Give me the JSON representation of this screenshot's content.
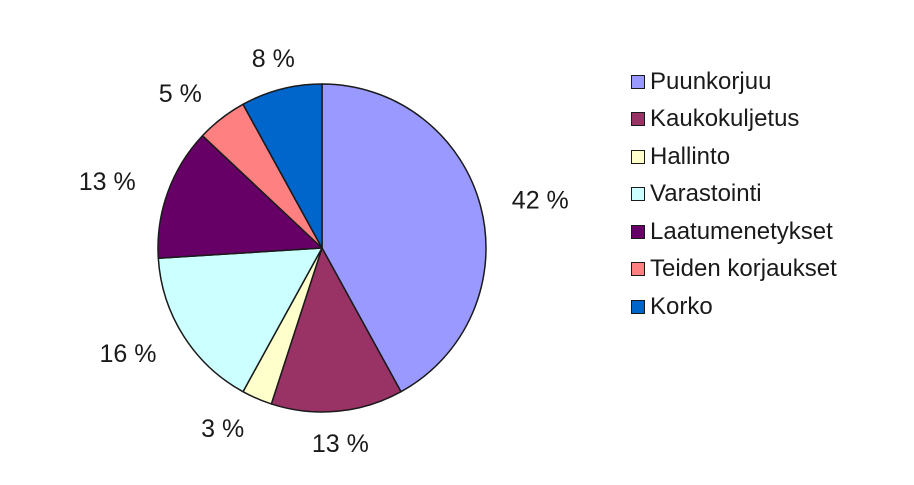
{
  "chart_data": {
    "type": "pie",
    "categories": [
      "Puunkorjuu",
      "Kaukokuljetus",
      "Hallinto",
      "Varastointi",
      "Laatumenetykset",
      "Teiden korjaukset",
      "Korko"
    ],
    "values": [
      42,
      13,
      3,
      16,
      13,
      5,
      8
    ],
    "labels": [
      "42 %",
      "13 %",
      "3 %",
      "16 %",
      "13 %",
      "5 %",
      "8 %"
    ],
    "colors": [
      "#9999ff",
      "#993366",
      "#ffffcc",
      "#ccffff",
      "#660066",
      "#ff8080",
      "#0066cc"
    ],
    "start_angle": "12 o'clock",
    "direction": "clockwise",
    "legend_position": "right",
    "title": ""
  }
}
